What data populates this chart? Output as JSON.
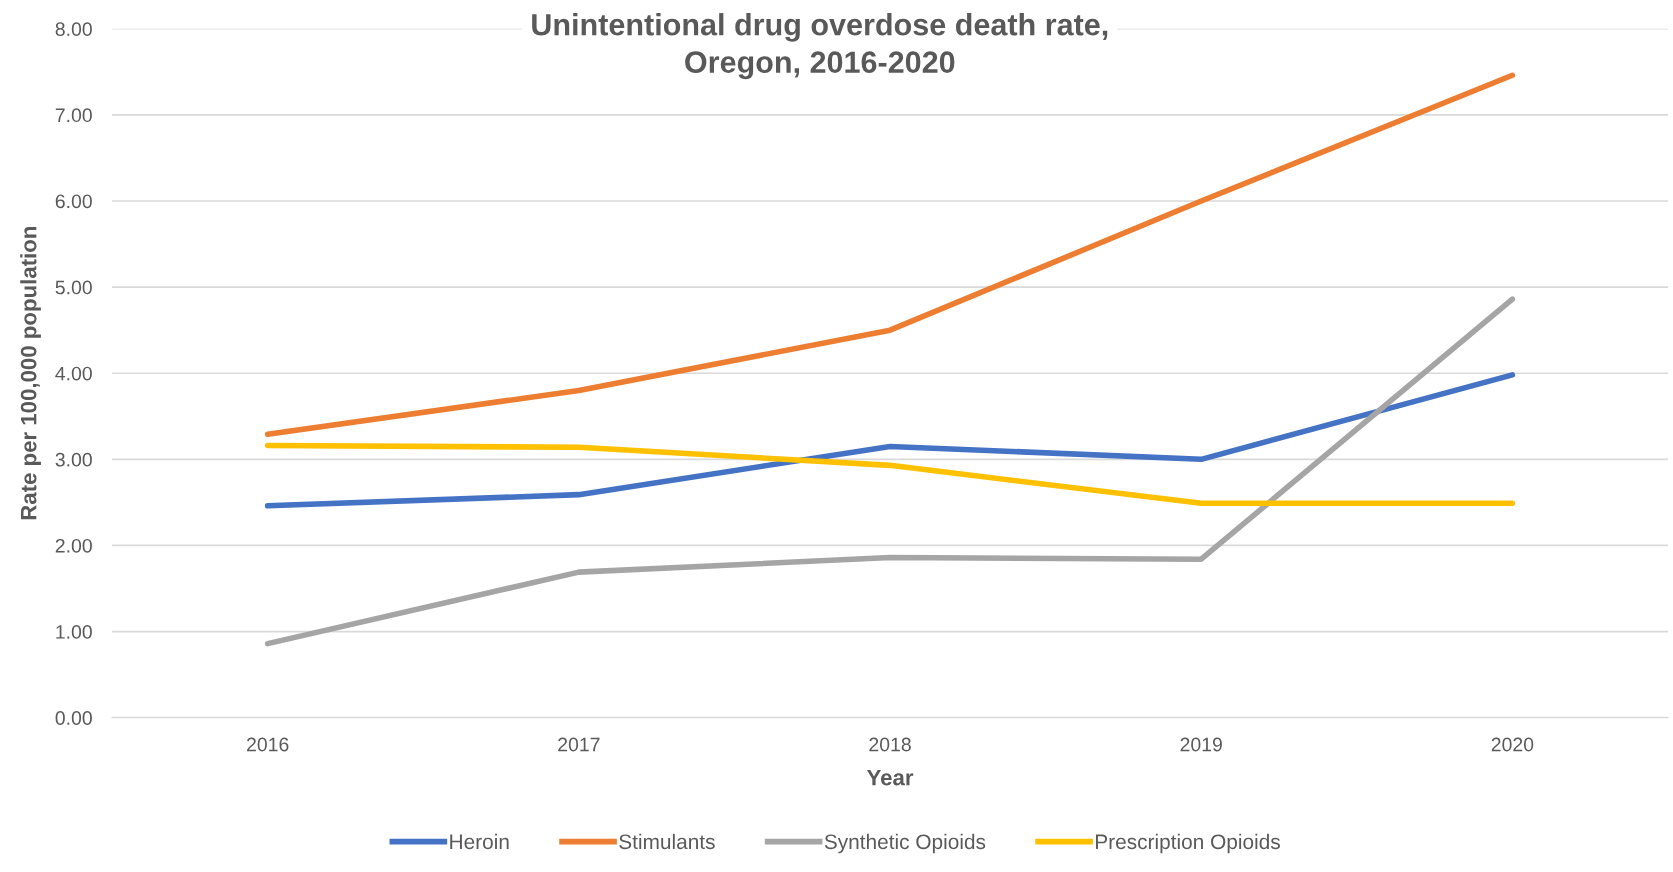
{
  "chart_data": {
    "type": "line",
    "title": "Unintentional drug overdose death rate,\nOregon, 2016-2020",
    "xlabel": "Year",
    "ylabel": "Rate per 100,000 population",
    "categories": [
      "2016",
      "2017",
      "2018",
      "2019",
      "2020"
    ],
    "series": [
      {
        "name": "Heroin",
        "color": "#4472c4",
        "values": [
          2.46,
          2.59,
          3.15,
          3.0,
          3.98
        ]
      },
      {
        "name": "Stimulants",
        "color": "#ed7d31",
        "values": [
          3.29,
          3.8,
          4.5,
          6.0,
          7.46
        ]
      },
      {
        "name": "Synthetic Opioids",
        "color": "#a5a5a5",
        "values": [
          0.86,
          1.69,
          1.86,
          1.84,
          4.86
        ]
      },
      {
        "name": "Prescription Opioids",
        "color": "#ffc000",
        "values": [
          3.16,
          3.14,
          2.93,
          2.49,
          2.49
        ]
      }
    ],
    "ylim": [
      0,
      8
    ],
    "yticks": [
      {
        "value": 0,
        "label": "0.00"
      },
      {
        "value": 1,
        "label": "1.00"
      },
      {
        "value": 2,
        "label": "2.00"
      },
      {
        "value": 3,
        "label": "3.00"
      },
      {
        "value": 4,
        "label": "4.00"
      },
      {
        "value": 5,
        "label": "5.00"
      },
      {
        "value": 6,
        "label": "6.00"
      },
      {
        "value": 7,
        "label": "7.00"
      },
      {
        "value": 8,
        "label": "8.00"
      }
    ],
    "grid": "y",
    "legend": "bottom",
    "marker": "none",
    "line_style": "solid"
  }
}
